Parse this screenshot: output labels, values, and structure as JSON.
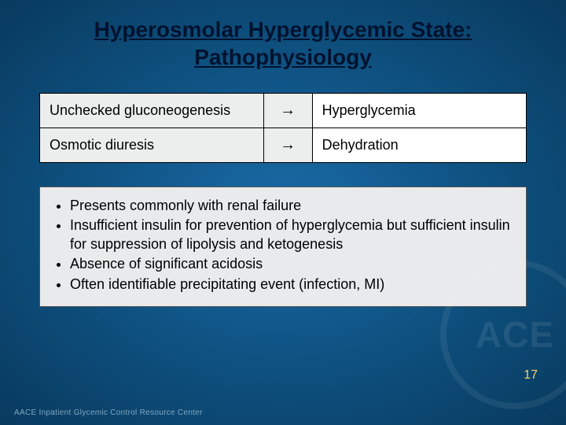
{
  "title_line1": "Hyperosmolar Hyperglycemic State:",
  "title_line2": "Pathophysiology",
  "table": {
    "rows": [
      {
        "cause": "Unchecked gluconeogenesis",
        "arrow": "→",
        "effect": "Hyperglycemia"
      },
      {
        "cause": "Osmotic diuresis",
        "arrow": "→",
        "effect": "Dehydration"
      }
    ]
  },
  "bullets": [
    "Presents commonly with renal failure",
    "Insufficient insulin for prevention of hyperglycemia but sufficient insulin for suppression of lipolysis and ketogenesis",
    "Absence of significant acidosis",
    "Often identifiable precipitating event (infection, MI)"
  ],
  "page_number": "17",
  "footer": "AACE Inpatient Glycemic Control Resource Center",
  "watermark_text": "ACE",
  "colors": {
    "title": "#00122e",
    "page_number": "#f4d46b",
    "bg_center": "#1a6ba8",
    "bg_edge": "#083a5e",
    "box_bg": "#e9eaeb",
    "cell_cause_bg": "#eceded"
  },
  "typography": {
    "title_fontsize": 28,
    "table_fontsize": 18,
    "bullet_fontsize": 18,
    "page_number_fontsize": 16,
    "footer_fontsize": 10
  }
}
